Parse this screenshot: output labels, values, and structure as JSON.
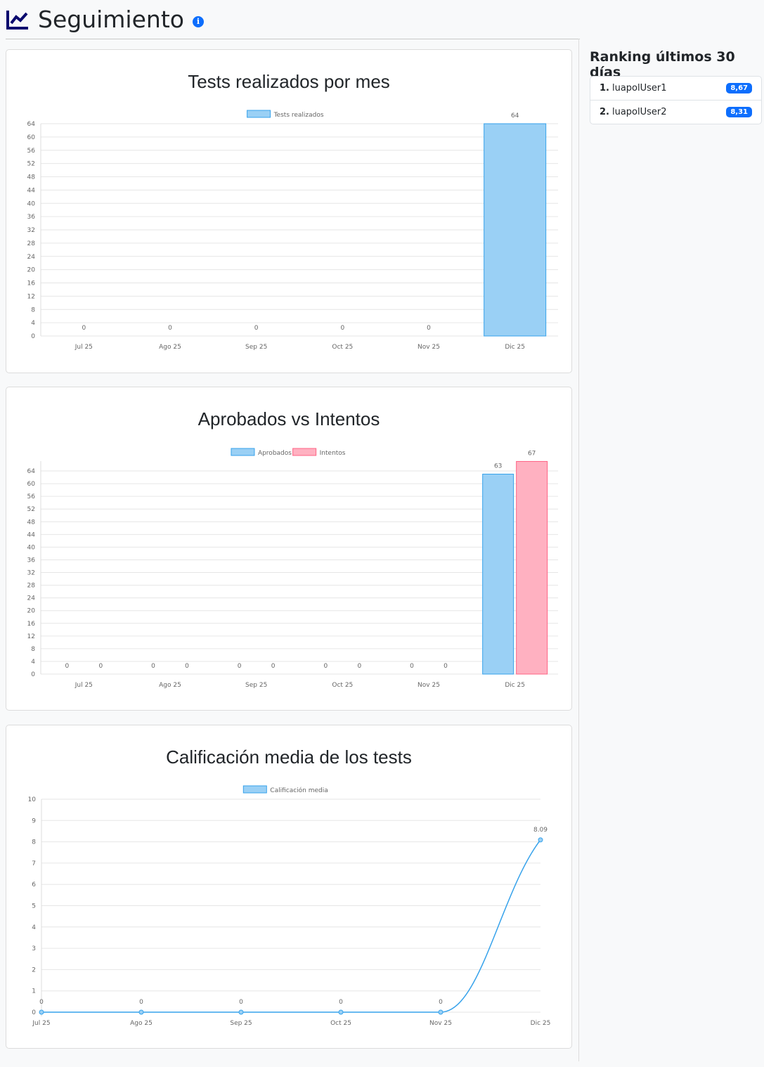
{
  "header": {
    "title": "Seguimiento",
    "icon": "chart-line-icon",
    "info_icon": "info-icon"
  },
  "ranking": {
    "title": "Ranking últimos 30 días",
    "items": [
      {
        "pos": "1.",
        "user": "luapolUser1",
        "score": "8,67"
      },
      {
        "pos": "2.",
        "user": "luapolUser2",
        "score": "8,31"
      }
    ]
  },
  "colors": {
    "blue_fill": "#9ad0f5",
    "blue_line": "#36a2eb",
    "pink_fill": "#ffb1c1",
    "pink_line": "#ff6384",
    "badge": "#0d6efd"
  },
  "chart_data": [
    {
      "type": "bar",
      "title": "Tests realizados por mes",
      "categories": [
        "Jul 25",
        "Ago 25",
        "Sep 25",
        "Oct 25",
        "Nov 25",
        "Dic 25"
      ],
      "series": [
        {
          "name": "Tests realizados",
          "values": [
            0,
            0,
            0,
            0,
            0,
            64
          ]
        }
      ],
      "ylim": [
        0,
        64
      ],
      "yticks": [
        0,
        4,
        8,
        12,
        16,
        20,
        24,
        28,
        32,
        36,
        40,
        44,
        48,
        52,
        56,
        60,
        64
      ],
      "grid": true,
      "legend": "top",
      "data_labels": true
    },
    {
      "type": "bar",
      "title": "Aprobados vs Intentos",
      "categories": [
        "Jul 25",
        "Ago 25",
        "Sep 25",
        "Oct 25",
        "Nov 25",
        "Dic 25"
      ],
      "series": [
        {
          "name": "Aprobados",
          "values": [
            0,
            0,
            0,
            0,
            0,
            63
          ]
        },
        {
          "name": "Intentos",
          "values": [
            0,
            0,
            0,
            0,
            0,
            67
          ]
        }
      ],
      "ylim": [
        0,
        67
      ],
      "yticks": [
        0,
        4,
        8,
        12,
        16,
        20,
        24,
        28,
        32,
        36,
        40,
        44,
        48,
        52,
        56,
        60,
        64
      ],
      "grid": true,
      "legend": "top",
      "data_labels": true
    },
    {
      "type": "line",
      "title": "Calificación media de los tests",
      "categories": [
        "Jul 25",
        "Ago 25",
        "Sep 25",
        "Oct 25",
        "Nov 25",
        "Dic 25"
      ],
      "series": [
        {
          "name": "Calificación media",
          "values": [
            0,
            0,
            0,
            0,
            0,
            8.09
          ]
        }
      ],
      "ylim": [
        0,
        10
      ],
      "yticks": [
        0,
        1,
        2,
        3,
        4,
        5,
        6,
        7,
        8,
        9,
        10
      ],
      "grid": true,
      "legend": "top",
      "data_labels": true
    }
  ]
}
